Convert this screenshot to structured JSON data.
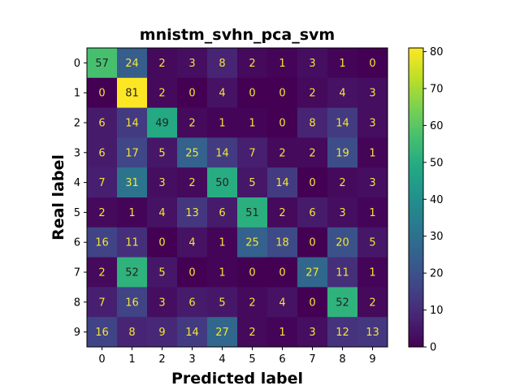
{
  "chart_data": {
    "type": "heatmap",
    "title": "mnistm_svhn_pca_svm",
    "xlabel": "Predicted label",
    "ylabel": "Real label",
    "x_categories": [
      "0",
      "1",
      "2",
      "3",
      "4",
      "5",
      "6",
      "7",
      "8",
      "9"
    ],
    "y_categories": [
      "0",
      "1",
      "2",
      "3",
      "4",
      "5",
      "6",
      "7",
      "8",
      "9"
    ],
    "matrix": [
      [
        57,
        24,
        2,
        3,
        8,
        2,
        1,
        3,
        1,
        0
      ],
      [
        0,
        81,
        2,
        0,
        4,
        0,
        0,
        2,
        4,
        3
      ],
      [
        6,
        14,
        49,
        2,
        1,
        1,
        0,
        8,
        14,
        3
      ],
      [
        6,
        17,
        5,
        25,
        14,
        7,
        2,
        2,
        19,
        1
      ],
      [
        7,
        31,
        3,
        2,
        50,
        5,
        14,
        0,
        2,
        3
      ],
      [
        2,
        1,
        4,
        13,
        6,
        51,
        2,
        6,
        3,
        1
      ],
      [
        16,
        11,
        0,
        4,
        1,
        25,
        18,
        0,
        20,
        5
      ],
      [
        2,
        52,
        5,
        0,
        1,
        0,
        0,
        27,
        11,
        1
      ],
      [
        7,
        16,
        3,
        6,
        5,
        2,
        4,
        0,
        52,
        2
      ],
      [
        16,
        8,
        9,
        14,
        27,
        2,
        1,
        3,
        12,
        13
      ]
    ],
    "colormap": "viridis",
    "value_range": [
      0,
      81
    ],
    "colorbar_ticks": [
      0,
      10,
      20,
      30,
      40,
      50,
      60,
      70,
      80
    ],
    "grid": false
  }
}
